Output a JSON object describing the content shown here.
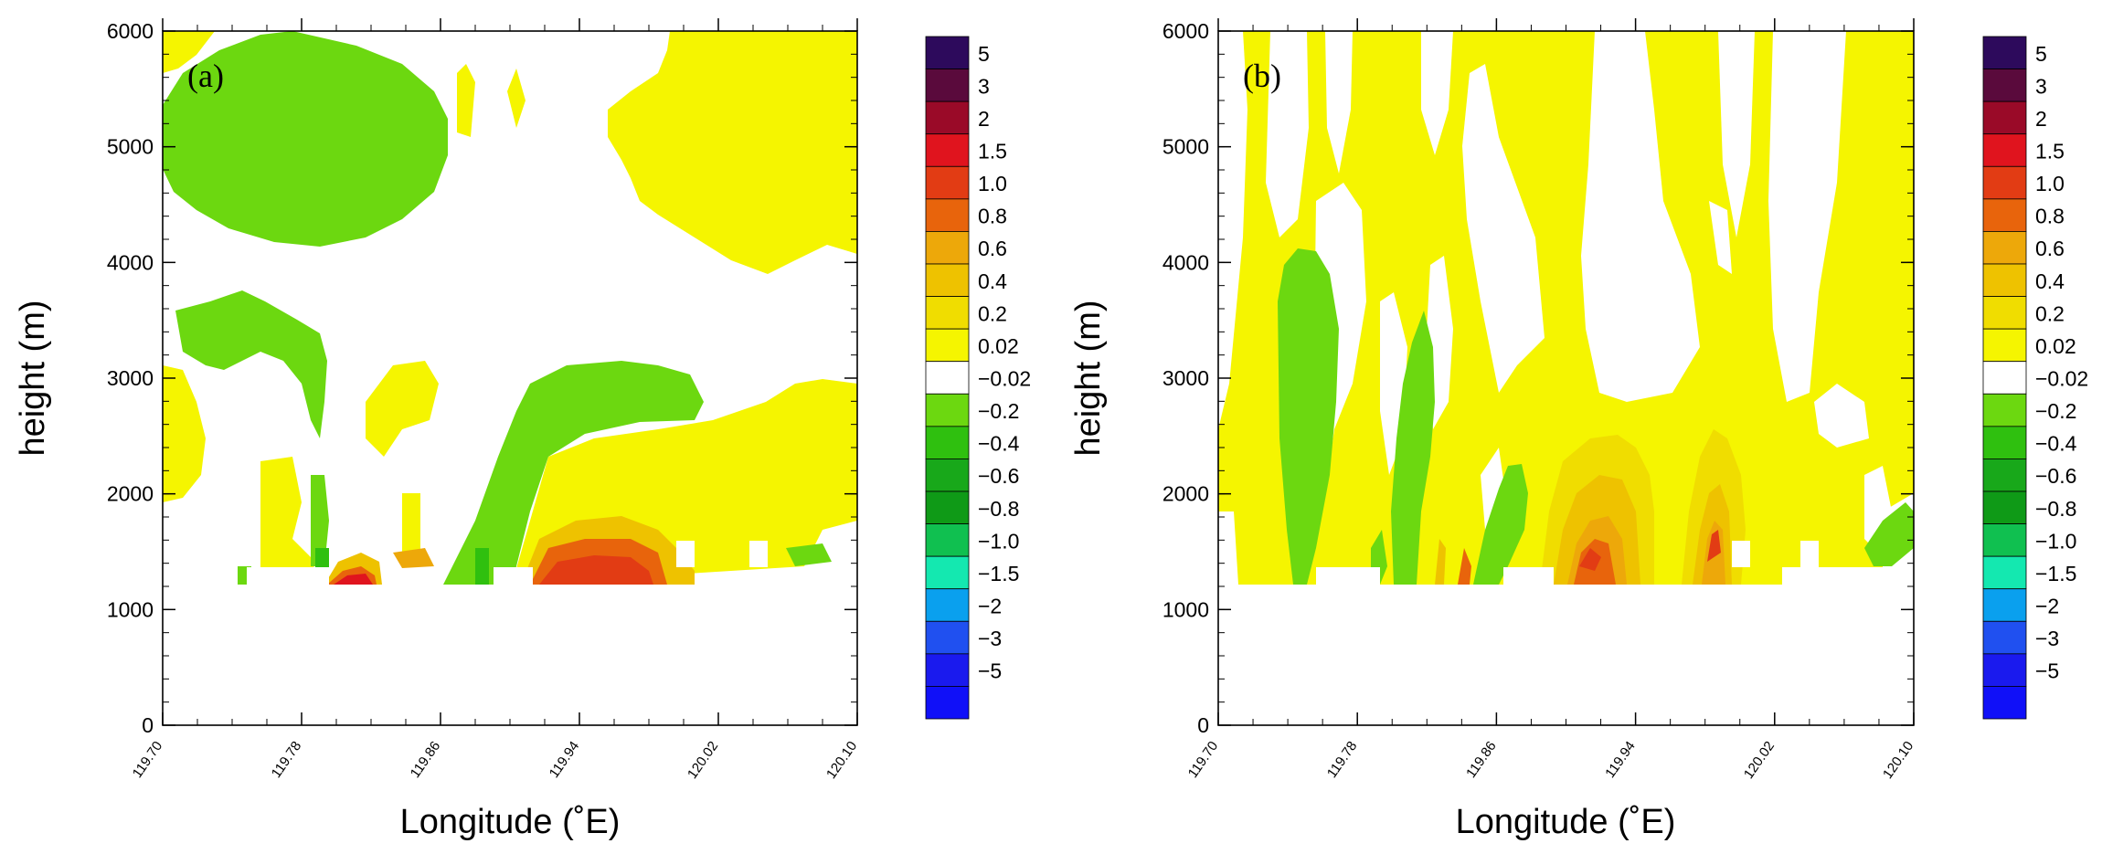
{
  "chart_data": [
    {
      "type": "contour",
      "panel_label": "(a)",
      "xlabel": "Longitude (˚E)",
      "ylabel": "height (m)",
      "xlim": [
        119.7,
        120.1
      ],
      "ylim": [
        0,
        6000
      ],
      "x_ticks": [
        "119.70",
        "119.78",
        "119.86",
        "119.94",
        "120.02",
        "120.10"
      ],
      "y_ticks": [
        "0",
        "1000",
        "2000",
        "3000",
        "4000",
        "5000",
        "6000"
      ],
      "terrain_top_m": 1400,
      "regions": [
        {
          "level": "-0.02 to -0.2",
          "desc": "large negative area near (119.76, 5000 m)"
        },
        {
          "level": "-0.02 to -0.2",
          "desc": "band from 119.70 to 119.79 near 3300 m"
        },
        {
          "level": "-0.02 to -0.2",
          "desc": "tilted band 119.88-120.02 from 1300 m to 3100 m"
        },
        {
          "level": "0.02 to 0.2",
          "desc": "upper-right positive region 119.99-120.10 above 4000 m"
        },
        {
          "level": "0.8 to 1.5",
          "desc": "positive maxima near 119.80 and 119.94 at about 1400 m"
        }
      ]
    },
    {
      "type": "contour",
      "panel_label": "(b)",
      "xlabel": "Longitude (˚E)",
      "ylabel": "height (m)",
      "xlim": [
        119.7,
        120.1
      ],
      "ylim": [
        0,
        6000
      ],
      "x_ticks": [
        "119.70",
        "119.78",
        "119.86",
        "119.94",
        "120.02",
        "120.10"
      ],
      "y_ticks": [
        "0",
        "1000",
        "2000",
        "3000",
        "4000",
        "5000",
        "6000"
      ],
      "terrain_top_m": 1400,
      "regions": [
        {
          "level": "0.02 to 0.2",
          "desc": "positive values fill most of the domain"
        },
        {
          "level": "-0.02 to -0.2",
          "desc": "negative column near 119.73 from 1200 m to 4100 m"
        },
        {
          "level": "-0.02 to -0.2",
          "desc": "negative column near 119.80 from 1300 m to 3700 m"
        },
        {
          "level": "0.4 to 1.0",
          "desc": "positive maxima near 119.92 and 119.97 below 2600 m"
        }
      ]
    }
  ],
  "colorbar": {
    "labels": [
      "5",
      "3",
      "2",
      "1.5",
      "1.0",
      "0.8",
      "0.6",
      "0.4",
      "0.2",
      "0.02",
      "−0.02",
      "−0.2",
      "−0.4",
      "−0.6",
      "−0.8",
      "−1.0",
      "−1.5",
      "−2",
      "−3",
      "−5"
    ],
    "colors": [
      "#2d0a5c",
      "#5a0a3c",
      "#9a0a28",
      "#e0141e",
      "#e23c14",
      "#e8640c",
      "#eda80a",
      "#eec200",
      "#f0dd00",
      "#f5f500",
      "#ffffff",
      "#6cd810",
      "#2fc00f",
      "#18a81a",
      "#0f9a17",
      "#10c050",
      "#14e8b0",
      "#0aa0ee",
      "#2050f0",
      "#1a1aee",
      "#1010f8"
    ]
  }
}
